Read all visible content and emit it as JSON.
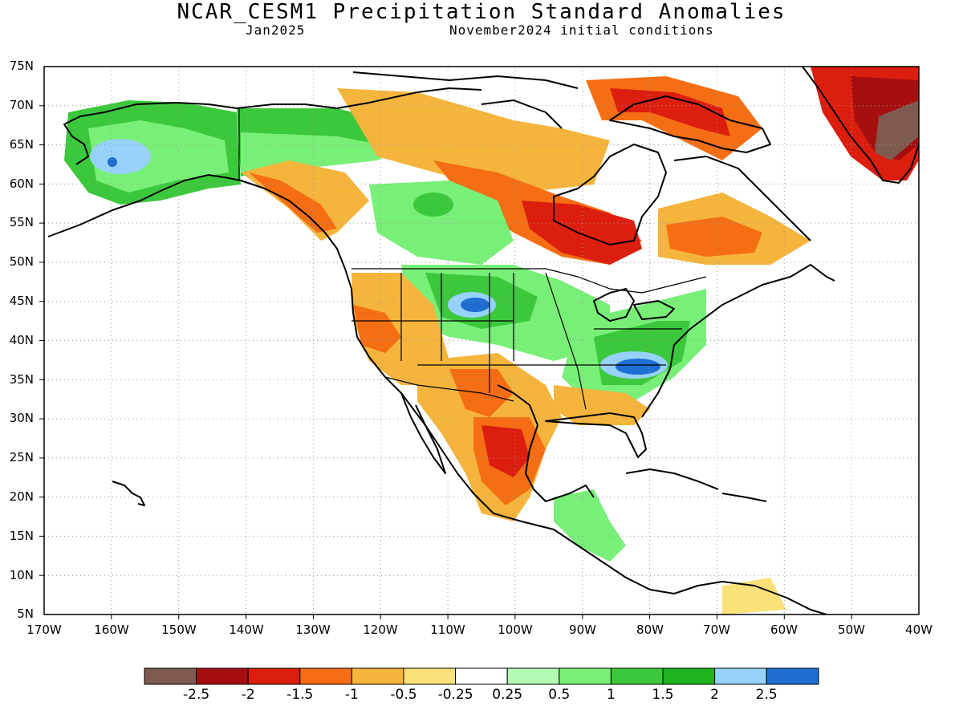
{
  "header": {
    "title": "NCAR_CESM1 Precipitation Standard Anomalies",
    "left_subtitle": "Jan2025",
    "right_subtitle": "November2024 initial conditions"
  },
  "axes": {
    "lat_ticks": [
      "75N",
      "70N",
      "65N",
      "60N",
      "55N",
      "50N",
      "45N",
      "40N",
      "35N",
      "30N",
      "25N",
      "20N",
      "15N",
      "10N",
      "5N"
    ],
    "lon_ticks": [
      "170W",
      "160W",
      "150W",
      "140W",
      "130W",
      "120W",
      "110W",
      "100W",
      "90W",
      "80W",
      "70W",
      "60W",
      "50W",
      "40W"
    ]
  },
  "legend": {
    "colors": [
      "#7f5a4e",
      "#a50f0f",
      "#dc1e0f",
      "#f56e14",
      "#f5b43c",
      "#fae178",
      "#ffffff",
      "#b4fab4",
      "#78f078",
      "#3cc83c",
      "#1eb41e",
      "#96d2fa",
      "#1e6ed2"
    ],
    "labels": [
      "-2.5",
      "-2",
      "-1.5",
      "-1",
      "-0.5",
      "-0.25",
      "0.25",
      "0.5",
      "1",
      "1.5",
      "2",
      "2.5"
    ]
  }
}
